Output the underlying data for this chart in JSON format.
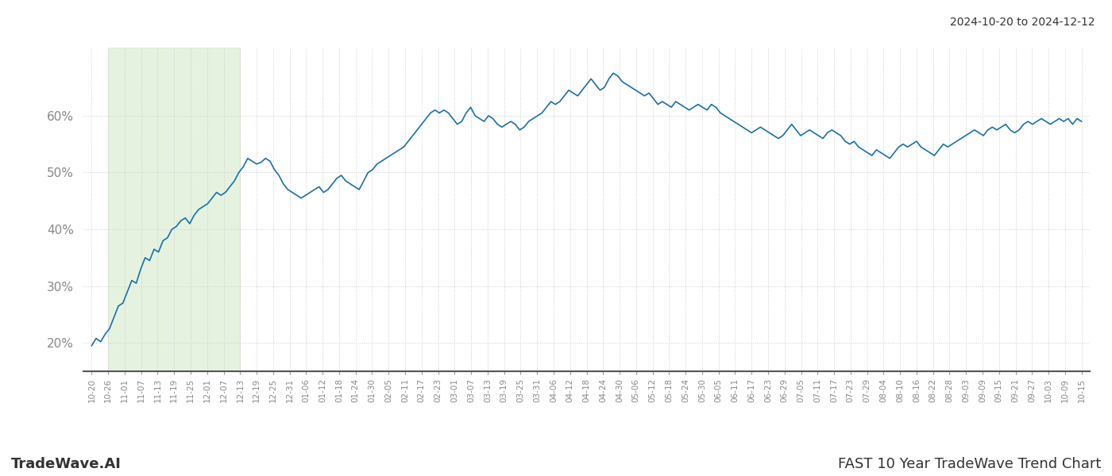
{
  "title_top_right": "2024-10-20 to 2024-12-12",
  "title_bottom_left": "TradeWave.AI",
  "title_bottom_right": "FAST 10 Year TradeWave Trend Chart",
  "line_color": "#1a6fa8",
  "line_width": 1.2,
  "background_color": "#ffffff",
  "shading_color": "#d4eacc",
  "shading_alpha": 0.6,
  "grid_color": "#cccccc",
  "grid_linestyle": ":",
  "tick_color": "#888888",
  "x_labels": [
    "10-20",
    "10-26",
    "11-01",
    "11-07",
    "11-13",
    "11-19",
    "11-25",
    "12-01",
    "12-07",
    "12-13",
    "12-19",
    "12-25",
    "12-31",
    "01-06",
    "01-12",
    "01-18",
    "01-24",
    "01-30",
    "02-05",
    "02-11",
    "02-17",
    "02-23",
    "03-01",
    "03-07",
    "03-13",
    "03-19",
    "03-25",
    "03-31",
    "04-06",
    "04-12",
    "04-18",
    "04-24",
    "04-30",
    "05-06",
    "05-12",
    "05-18",
    "05-24",
    "05-30",
    "06-05",
    "06-11",
    "06-17",
    "06-23",
    "06-29",
    "07-05",
    "07-11",
    "07-17",
    "07-23",
    "07-29",
    "08-04",
    "08-10",
    "08-16",
    "08-22",
    "08-28",
    "09-03",
    "09-09",
    "09-15",
    "09-21",
    "09-27",
    "10-03",
    "10-09",
    "10-15"
  ],
  "ylabel_values": [
    20,
    30,
    40,
    50,
    60
  ],
  "ylim": [
    15,
    72
  ],
  "shading_label_start": "10-26",
  "shading_label_end": "12-13",
  "y_values": [
    19.5,
    20.8,
    20.2,
    21.5,
    22.5,
    24.5,
    26.5,
    27.0,
    29.0,
    31.0,
    30.5,
    33.0,
    35.0,
    34.5,
    36.5,
    36.0,
    38.0,
    38.5,
    40.0,
    40.5,
    41.5,
    42.0,
    41.0,
    42.5,
    43.5,
    44.0,
    44.5,
    45.5,
    46.5,
    46.0,
    46.5,
    47.5,
    48.5,
    50.0,
    51.0,
    52.5,
    52.0,
    51.5,
    51.8,
    52.5,
    52.0,
    50.5,
    49.5,
    48.0,
    47.0,
    46.5,
    46.0,
    45.5,
    46.0,
    46.5,
    47.0,
    47.5,
    46.5,
    47.0,
    48.0,
    49.0,
    49.5,
    48.5,
    48.0,
    47.5,
    47.0,
    48.5,
    50.0,
    50.5,
    51.5,
    52.0,
    52.5,
    53.0,
    53.5,
    54.0,
    54.5,
    55.5,
    56.5,
    57.5,
    58.5,
    59.5,
    60.5,
    61.0,
    60.5,
    61.0,
    60.5,
    59.5,
    58.5,
    59.0,
    60.5,
    61.5,
    60.0,
    59.5,
    59.0,
    60.0,
    59.5,
    58.5,
    58.0,
    58.5,
    59.0,
    58.5,
    57.5,
    58.0,
    59.0,
    59.5,
    60.0,
    60.5,
    61.5,
    62.5,
    62.0,
    62.5,
    63.5,
    64.5,
    64.0,
    63.5,
    64.5,
    65.5,
    66.5,
    65.5,
    64.5,
    65.0,
    66.5,
    67.5,
    67.0,
    66.0,
    65.5,
    65.0,
    64.5,
    64.0,
    63.5,
    64.0,
    63.0,
    62.0,
    62.5,
    62.0,
    61.5,
    62.5,
    62.0,
    61.5,
    61.0,
    61.5,
    62.0,
    61.5,
    61.0,
    62.0,
    61.5,
    60.5,
    60.0,
    59.5,
    59.0,
    58.5,
    58.0,
    57.5,
    57.0,
    57.5,
    58.0,
    57.5,
    57.0,
    56.5,
    56.0,
    56.5,
    57.5,
    58.5,
    57.5,
    56.5,
    57.0,
    57.5,
    57.0,
    56.5,
    56.0,
    57.0,
    57.5,
    57.0,
    56.5,
    55.5,
    55.0,
    55.5,
    54.5,
    54.0,
    53.5,
    53.0,
    54.0,
    53.5,
    53.0,
    52.5,
    53.5,
    54.5,
    55.0,
    54.5,
    55.0,
    55.5,
    54.5,
    54.0,
    53.5,
    53.0,
    54.0,
    55.0,
    54.5,
    55.0,
    55.5,
    56.0,
    56.5,
    57.0,
    57.5,
    57.0,
    56.5,
    57.5,
    58.0,
    57.5,
    58.0,
    58.5,
    57.5,
    57.0,
    57.5,
    58.5,
    59.0,
    58.5,
    59.0,
    59.5,
    59.0,
    58.5,
    59.0,
    59.5,
    59.0,
    59.5,
    58.5,
    59.5,
    59.0
  ]
}
